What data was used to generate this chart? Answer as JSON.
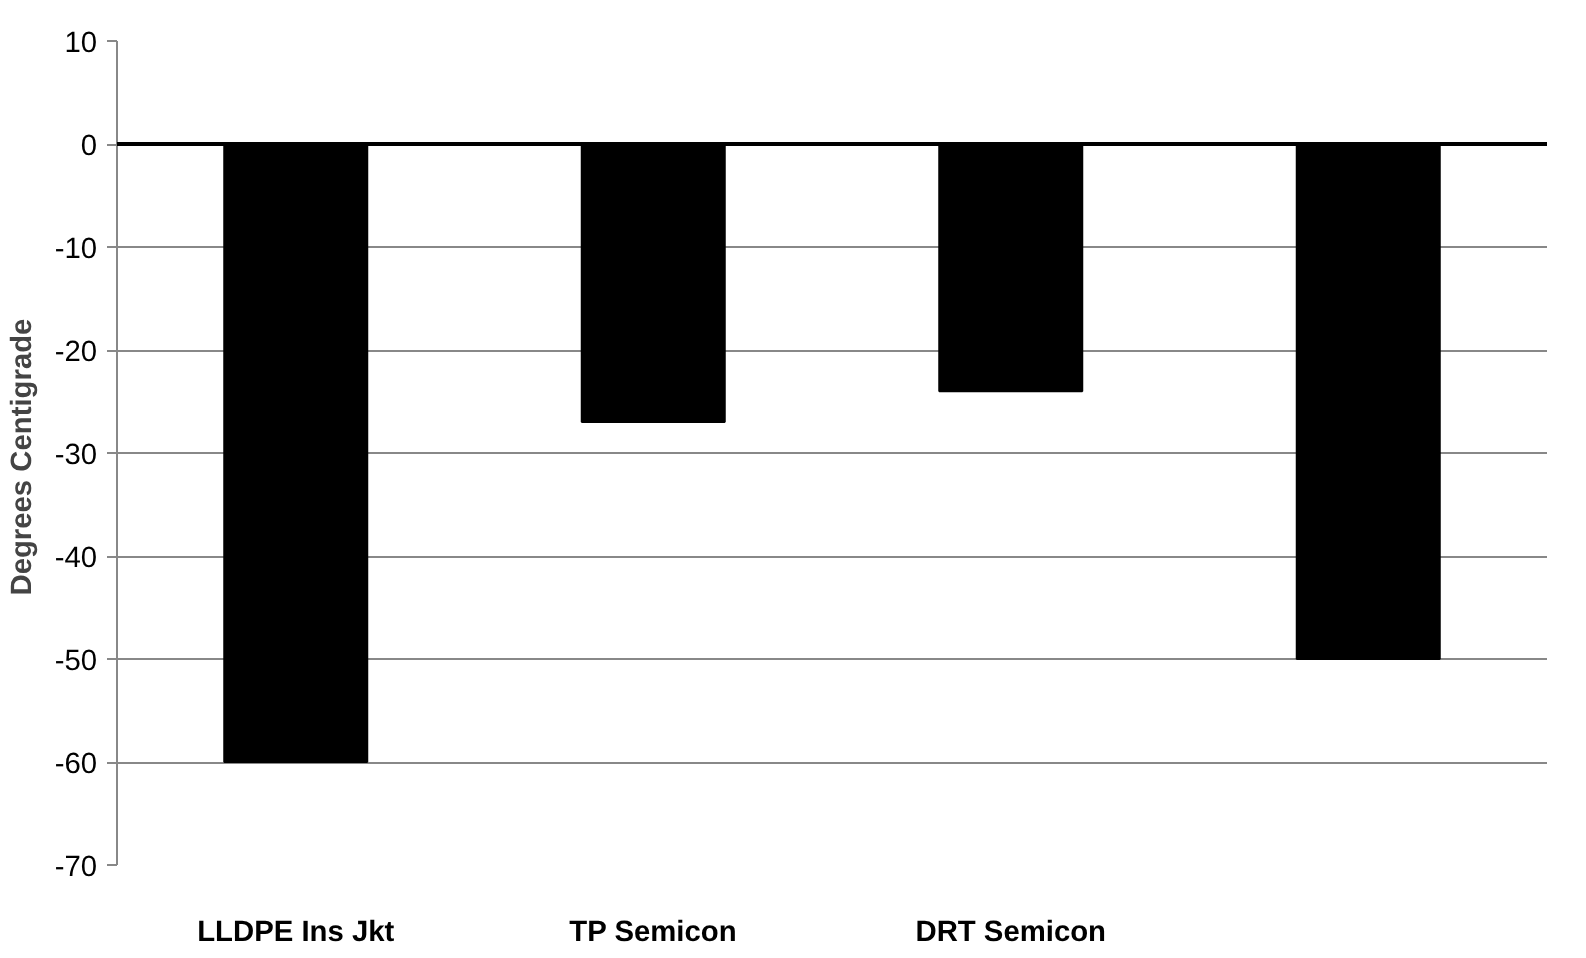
{
  "chart_data": {
    "type": "bar",
    "ylabel": "Degrees  Centigrade",
    "categories": [
      "LLDPE Ins Jkt",
      "TP Semicon",
      "DRT Semicon",
      null
    ],
    "values": [
      -60,
      -27,
      -24,
      -50
    ],
    "color": "#000000",
    "ylim": [
      -70,
      10
    ],
    "yticks": [
      -70,
      -60,
      -50,
      -40,
      -30,
      -20,
      -10,
      0,
      10
    ],
    "grid": "y"
  }
}
